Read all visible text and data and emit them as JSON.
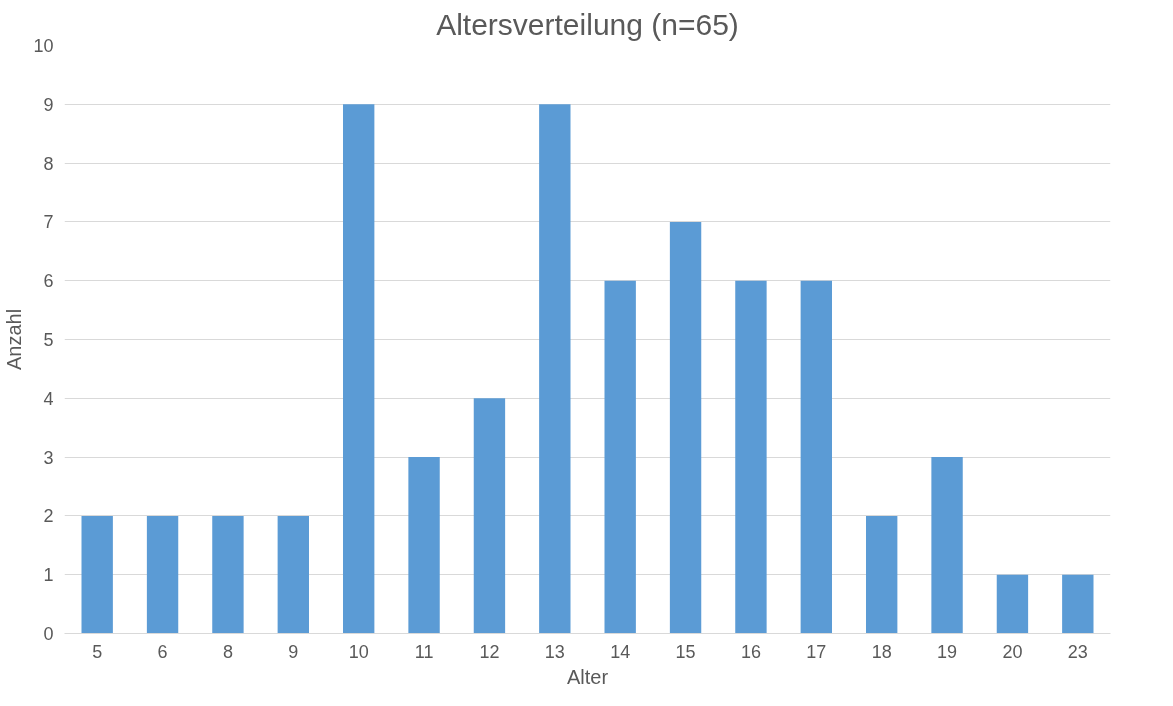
{
  "chart_data": {
    "type": "bar",
    "title": "Altersverteilung (n=65)",
    "xlabel": "Alter",
    "ylabel": "Anzahl",
    "categories": [
      "5",
      "6",
      "8",
      "9",
      "10",
      "11",
      "12",
      "13",
      "14",
      "15",
      "16",
      "17",
      "18",
      "19",
      "20",
      "23"
    ],
    "values": [
      2,
      2,
      2,
      2,
      9,
      3,
      4,
      9,
      6,
      7,
      6,
      6,
      2,
      3,
      1,
      1
    ],
    "color": "#5b9bd5",
    "ylim": [
      0,
      10
    ],
    "yticks": [
      0,
      1,
      2,
      3,
      4,
      5,
      6,
      7,
      8,
      9,
      10
    ],
    "grid": "y"
  }
}
